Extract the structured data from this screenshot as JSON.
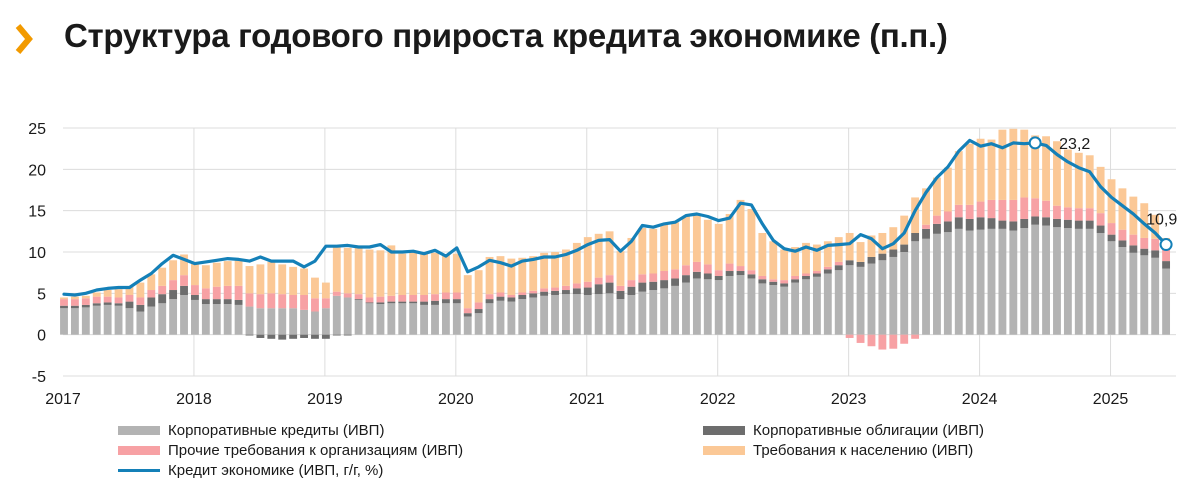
{
  "title": "Структура годового прироста кредита экономике (п.п.)",
  "colors": {
    "corp_loans": "#b3b3b3",
    "corp_bonds": "#6d6d6d",
    "other_claims": "#f7a1a4",
    "household": "#fbc896",
    "credit_line": "#1480b8",
    "title_chevron": "#f29a00"
  },
  "chart_data": {
    "type": "bar",
    "stacked": true,
    "title": "Структура годового прироста кредита экономике (п.п.)",
    "ylim": [
      -5,
      25
    ],
    "yticks": [
      "-5",
      "0",
      "5",
      "10",
      "15",
      "20",
      "25"
    ],
    "year_labels": [
      "2017",
      "2018",
      "2019",
      "2020",
      "2021",
      "2022",
      "2023",
      "2024",
      "2025"
    ],
    "x_start": 2017.0,
    "x_step": 0.0833333,
    "series": [
      {
        "key": "corp_loans",
        "name": "Корпоративные кредиты (ИВП)",
        "values": [
          3.2,
          3.2,
          3.3,
          3.5,
          3.6,
          3.5,
          3.2,
          2.8,
          3.4,
          3.8,
          4.3,
          4.8,
          4.2,
          3.7,
          3.7,
          3.7,
          3.6,
          3.4,
          3.2,
          3.2,
          3.2,
          3.2,
          3.0,
          2.8,
          3.2,
          4.7,
          4.5,
          4.2,
          3.8,
          3.7,
          3.8,
          3.8,
          3.8,
          3.6,
          3.6,
          3.8,
          3.8,
          2.2,
          2.6,
          3.8,
          4.1,
          4.0,
          4.3,
          4.5,
          4.7,
          4.8,
          4.9,
          4.9,
          4.8,
          4.9,
          5.0,
          4.3,
          4.8,
          5.2,
          5.4,
          5.6,
          5.9,
          6.3,
          6.8,
          6.7,
          6.6,
          7.1,
          7.2,
          6.8,
          6.2,
          6.0,
          5.8,
          6.3,
          6.7,
          7.0,
          7.4,
          7.8,
          8.4,
          8.2,
          8.6,
          9.0,
          9.4,
          10.0,
          11.3,
          11.6,
          12.2,
          12.4,
          12.8,
          12.6,
          12.7,
          12.8,
          12.8,
          12.6,
          12.9,
          13.3,
          13.2,
          13.0,
          12.9,
          12.8,
          12.8,
          12.3,
          11.3,
          10.6,
          9.9,
          9.6,
          9.3,
          8.0
        ]
      },
      {
        "key": "corp_bonds",
        "name": "Корпоративные облигации (ИВП)",
        "values": [
          0.3,
          0.3,
          0.3,
          0.3,
          0.3,
          0.3,
          0.8,
          0.8,
          1.1,
          1.1,
          1.1,
          1.1,
          0.6,
          0.6,
          0.6,
          0.6,
          0.6,
          -0.1,
          -0.4,
          -0.5,
          -0.6,
          -0.5,
          -0.4,
          -0.5,
          -0.5,
          -0.1,
          -0.1,
          0.1,
          0.1,
          0.2,
          0.2,
          0.2,
          0.2,
          0.4,
          0.5,
          0.5,
          0.5,
          0.4,
          0.5,
          0.5,
          0.5,
          0.5,
          0.5,
          0.5,
          0.5,
          0.5,
          0.5,
          0.7,
          0.9,
          1.2,
          1.3,
          1.0,
          1.0,
          1.1,
          1.0,
          1.0,
          0.9,
          0.9,
          0.8,
          0.7,
          0.5,
          0.6,
          0.5,
          0.5,
          0.5,
          0.4,
          0.4,
          0.4,
          0.4,
          0.4,
          0.5,
          0.6,
          0.6,
          0.6,
          0.8,
          0.8,
          0.9,
          0.9,
          1.0,
          1.2,
          1.2,
          1.3,
          1.4,
          1.4,
          1.5,
          1.3,
          1.0,
          1.1,
          1.1,
          1.0,
          1.0,
          1.0,
          1.0,
          1.0,
          1.0,
          0.9,
          0.8,
          0.8,
          0.9,
          0.8,
          0.9,
          0.9
        ]
      },
      {
        "key": "other_claims",
        "name": "Прочие требования к организациям (ИВП)",
        "values": [
          0.8,
          0.8,
          0.8,
          0.8,
          0.7,
          0.7,
          0.8,
          0.9,
          0.9,
          1.0,
          1.2,
          1.3,
          1.2,
          1.3,
          1.5,
          1.6,
          1.7,
          1.6,
          1.7,
          1.8,
          1.7,
          1.6,
          1.8,
          1.6,
          1.2,
          0.5,
          0.5,
          0.6,
          0.6,
          0.7,
          0.7,
          0.8,
          0.8,
          0.8,
          0.8,
          0.8,
          0.8,
          0.6,
          0.8,
          0.6,
          0.5,
          0.3,
          0.3,
          0.3,
          0.4,
          0.4,
          0.5,
          0.6,
          0.7,
          0.8,
          0.9,
          0.6,
          0.8,
          1.0,
          1.0,
          1.1,
          1.1,
          1.2,
          1.2,
          1.1,
          0.7,
          0.9,
          0.6,
          0.5,
          0.4,
          0.3,
          0.4,
          0.4,
          0.3,
          0.3,
          0.3,
          0.4,
          -0.4,
          -1.0,
          -1.4,
          -1.8,
          -1.7,
          -1.1,
          -0.5,
          0.5,
          1.0,
          1.2,
          1.5,
          1.7,
          1.9,
          2.2,
          2.5,
          2.6,
          2.6,
          2.2,
          2.0,
          1.6,
          1.5,
          1.5,
          1.5,
          1.5,
          1.4,
          1.3,
          1.3,
          1.3,
          1.4,
          1.4
        ]
      },
      {
        "key": "household",
        "name": "Требования к населению (ИВП)",
        "values": [
          0.2,
          0.3,
          0.3,
          0.5,
          0.8,
          1.0,
          1.0,
          1.8,
          1.9,
          2.2,
          2.4,
          2.5,
          2.8,
          2.8,
          2.9,
          3.0,
          3.1,
          3.3,
          3.6,
          3.8,
          3.6,
          3.4,
          3.2,
          2.5,
          1.9,
          5.4,
          5.5,
          5.7,
          5.8,
          5.6,
          6.1,
          5.0,
          5.2,
          5.0,
          5.0,
          4.6,
          4.7,
          4.0,
          3.9,
          4.5,
          4.4,
          4.4,
          4.2,
          4.2,
          4.3,
          4.3,
          4.4,
          4.9,
          5.4,
          5.3,
          5.3,
          4.2,
          5.1,
          5.6,
          5.4,
          5.7,
          5.7,
          5.9,
          5.8,
          5.4,
          5.6,
          6.0,
          8.0,
          7.4,
          5.2,
          4.6,
          3.7,
          3.5,
          3.7,
          3.2,
          3.1,
          3.0,
          3.3,
          2.4,
          2.6,
          2.5,
          2.7,
          3.5,
          4.3,
          4.4,
          4.6,
          5.3,
          6.5,
          7.4,
          7.6,
          7.3,
          8.5,
          8.6,
          8.2,
          7.6,
          7.8,
          7.8,
          7.0,
          6.7,
          6.4,
          5.6,
          5.3,
          5.0,
          4.6,
          4.2,
          2.9,
          1.4
        ]
      }
    ],
    "credit_line": {
      "name": "Кредит экономике (ИВП, г/г, %)",
      "values": [
        4.9,
        4.8,
        5.0,
        5.4,
        5.6,
        5.7,
        5.7,
        6.6,
        7.4,
        8.6,
        9.6,
        9.1,
        8.6,
        8.8,
        9.0,
        9.2,
        9.1,
        8.9,
        9.4,
        8.9,
        8.9,
        8.9,
        8.2,
        8.9,
        10.7,
        10.7,
        10.8,
        10.6,
        10.6,
        10.9,
        10.0,
        10.0,
        10.1,
        9.8,
        10.2,
        9.5,
        10.5,
        7.6,
        8.2,
        9.0,
        8.7,
        8.3,
        8.9,
        9.1,
        9.4,
        9.4,
        9.7,
        10.2,
        10.9,
        11.4,
        11.5,
        10.1,
        11.3,
        13.2,
        13.0,
        13.4,
        13.6,
        14.4,
        14.6,
        14.3,
        13.8,
        14.1,
        15.9,
        15.7,
        13.4,
        11.4,
        10.4,
        10.1,
        10.6,
        10.2,
        10.8,
        10.9,
        11.0,
        12.1,
        11.6,
        10.4,
        11.0,
        12.3,
        15.0,
        17.2,
        19.0,
        20.3,
        22.2,
        23.5,
        22.8,
        23.1,
        22.6,
        23.2,
        23.1,
        23.2,
        22.9,
        21.8,
        20.9,
        20.2,
        19.7,
        17.9,
        16.6,
        15.6,
        14.6,
        13.4,
        12.3,
        10.9
      ]
    },
    "annotations": [
      {
        "label": "23,2",
        "index": 89
      },
      {
        "label": "10,9",
        "index": 101
      }
    ]
  }
}
